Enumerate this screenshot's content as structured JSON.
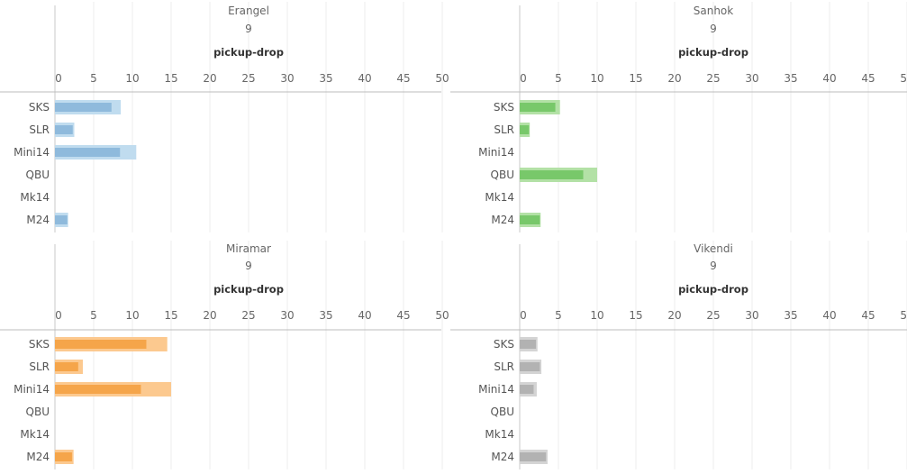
{
  "chart_data": [
    {
      "type": "bar",
      "title": "Erangel",
      "subtitle": "9",
      "xlabel": "pickup-drop",
      "xlim": [
        0,
        50
      ],
      "xticks": [
        0,
        5,
        10,
        15,
        20,
        25,
        30,
        35,
        40,
        45,
        50
      ],
      "categories": [
        "SKS",
        "SLR",
        "Mini14",
        "QBU",
        "Mk14",
        "M24"
      ],
      "series": [
        {
          "values": [
            8.5,
            2.5,
            10.5,
            null,
            null,
            1.7
          ]
        },
        {
          "values": [
            7.3,
            2.3,
            8.4,
            null,
            null,
            1.6
          ]
        }
      ],
      "colors": {
        "outer": "#c0dcef",
        "inner": "#8fbadc"
      }
    },
    {
      "type": "bar",
      "title": "Sanhok",
      "subtitle": "9",
      "xlabel": "pickup-drop",
      "xlim": [
        0,
        50
      ],
      "xticks": [
        0,
        5,
        10,
        15,
        20,
        25,
        30,
        35,
        40,
        45,
        50
      ],
      "categories": [
        "SKS",
        "SLR",
        "Mini14",
        "QBU",
        "Mk14",
        "M24"
      ],
      "series": [
        {
          "values": [
            5.2,
            1.3,
            null,
            10.0,
            null,
            2.7
          ]
        },
        {
          "values": [
            4.6,
            1.2,
            null,
            8.2,
            null,
            2.6
          ]
        }
      ],
      "colors": {
        "outer": "#b3e1a6",
        "inner": "#78c86a"
      }
    },
    {
      "type": "bar",
      "title": "Miramar",
      "subtitle": "9",
      "xlabel": "pickup-drop",
      "xlim": [
        0,
        50
      ],
      "xticks": [
        0,
        5,
        10,
        15,
        20,
        25,
        30,
        35,
        40,
        45,
        50
      ],
      "categories": [
        "SKS",
        "SLR",
        "Mini14",
        "QBU",
        "Mk14",
        "M24"
      ],
      "series": [
        {
          "values": [
            14.5,
            3.6,
            15.0,
            null,
            null,
            2.4
          ]
        },
        {
          "values": [
            11.8,
            3.0,
            11.1,
            null,
            null,
            2.2
          ]
        }
      ],
      "colors": {
        "outer": "#fcc98f",
        "inner": "#f5a54a"
      }
    },
    {
      "type": "bar",
      "title": "Vikendi",
      "subtitle": "9",
      "xlabel": "pickup-drop",
      "xlim": [
        0,
        50
      ],
      "xticks": [
        0,
        5,
        10,
        15,
        20,
        25,
        30,
        35,
        40,
        45,
        50
      ],
      "categories": [
        "SKS",
        "SLR",
        "Mini14",
        "QBU",
        "Mk14",
        "M24"
      ],
      "series": [
        {
          "values": [
            2.3,
            2.8,
            2.2,
            null,
            null,
            3.6
          ]
        },
        {
          "values": [
            2.1,
            2.6,
            1.8,
            null,
            null,
            3.4
          ]
        }
      ],
      "colors": {
        "outer": "#d4d4d4",
        "inner": "#b2b2b2"
      }
    }
  ]
}
